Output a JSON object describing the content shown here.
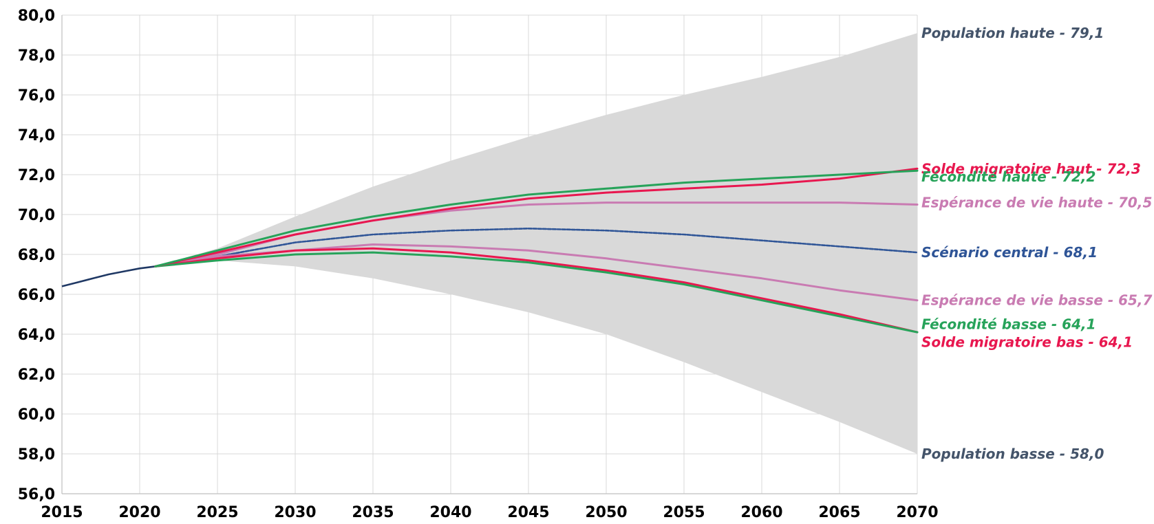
{
  "chart_data": {
    "type": "line",
    "title": "",
    "xlabel": "",
    "ylabel": "",
    "xlim": [
      2015,
      2070
    ],
    "ylim": [
      56,
      80
    ],
    "x_ticks": [
      2015,
      2020,
      2025,
      2030,
      2035,
      2040,
      2045,
      2050,
      2055,
      2060,
      2065,
      2070
    ],
    "x_tick_labels": [
      "2015",
      "2020",
      "2025",
      "2030",
      "2035",
      "2040",
      "2045",
      "2050",
      "2055",
      "2060",
      "2065",
      "2070"
    ],
    "y_ticks": [
      56,
      58,
      60,
      62,
      64,
      66,
      68,
      70,
      72,
      74,
      76,
      78,
      80
    ],
    "y_tick_labels": [
      "56,0",
      "58,0",
      "60,0",
      "62,0",
      "64,0",
      "66,0",
      "68,0",
      "70,0",
      "72,0",
      "74,0",
      "76,0",
      "78,0",
      "80,0"
    ],
    "grid": true,
    "history": {
      "color": "#1f3864",
      "x": [
        2015,
        2016,
        2017,
        2018,
        2019,
        2020,
        2021
      ],
      "y": [
        66.4,
        66.6,
        66.8,
        67.0,
        67.15,
        67.3,
        67.4
      ]
    },
    "band": {
      "color": "#d9d9d9",
      "x": [
        2021,
        2025,
        2030,
        2035,
        2040,
        2045,
        2050,
        2055,
        2060,
        2065,
        2070
      ],
      "upper": [
        67.4,
        68.3,
        69.9,
        71.4,
        72.7,
        73.9,
        75.0,
        76.0,
        76.9,
        77.9,
        79.1
      ],
      "lower": [
        67.4,
        67.7,
        67.4,
        66.8,
        66.0,
        65.1,
        64.0,
        62.6,
        61.1,
        59.6,
        58.0
      ]
    },
    "series": [
      {
        "name": "Scénario central",
        "color": "#2f5597",
        "dashed": true,
        "x": [
          2021,
          2025,
          2030,
          2035,
          2040,
          2045,
          2050,
          2055,
          2060,
          2065,
          2070
        ],
        "y": [
          67.4,
          67.9,
          68.6,
          69.0,
          69.2,
          69.3,
          69.2,
          69.0,
          68.7,
          68.4,
          68.1
        ]
      },
      {
        "name": "Espérance de vie haute",
        "color": "#c97bb2",
        "x": [
          2021,
          2025,
          2030,
          2035,
          2040,
          2045,
          2050,
          2055,
          2060,
          2065,
          2070
        ],
        "y": [
          67.4,
          68.0,
          69.0,
          69.7,
          70.2,
          70.5,
          70.6,
          70.6,
          70.6,
          70.6,
          70.5
        ]
      },
      {
        "name": "Espérance de vie basse",
        "color": "#c97bb2",
        "x": [
          2021,
          2025,
          2030,
          2035,
          2040,
          2045,
          2050,
          2055,
          2060,
          2065,
          2070
        ],
        "y": [
          67.4,
          67.9,
          68.2,
          68.5,
          68.4,
          68.2,
          67.8,
          67.3,
          66.8,
          66.2,
          65.7
        ]
      },
      {
        "name": "Solde migratoire bas",
        "color": "#e8174f",
        "x": [
          2021,
          2025,
          2030,
          2035,
          2040,
          2045,
          2050,
          2055,
          2060,
          2065,
          2070
        ],
        "y": [
          67.4,
          67.8,
          68.2,
          68.3,
          68.1,
          67.7,
          67.2,
          66.6,
          65.8,
          65.0,
          64.1
        ]
      },
      {
        "name": "Fécondité basse",
        "color": "#27a35a",
        "x": [
          2021,
          2025,
          2030,
          2035,
          2040,
          2045,
          2050,
          2055,
          2060,
          2065,
          2070
        ],
        "y": [
          67.4,
          67.7,
          68.0,
          68.1,
          67.9,
          67.6,
          67.1,
          66.5,
          65.7,
          64.9,
          64.1
        ]
      },
      {
        "name": "Solde migratoire haut",
        "color": "#e8174f",
        "x": [
          2021,
          2025,
          2030,
          2035,
          2040,
          2045,
          2050,
          2055,
          2060,
          2065,
          2070
        ],
        "y": [
          67.4,
          68.1,
          69.0,
          69.7,
          70.3,
          70.8,
          71.1,
          71.3,
          71.5,
          71.8,
          72.3
        ]
      },
      {
        "name": "Fécondité haute",
        "color": "#27a35a",
        "x": [
          2021,
          2025,
          2030,
          2035,
          2040,
          2045,
          2050,
          2055,
          2060,
          2065,
          2070
        ],
        "y": [
          67.4,
          68.2,
          69.2,
          69.9,
          70.5,
          71.0,
          71.3,
          71.6,
          71.8,
          72.0,
          72.2
        ]
      }
    ],
    "end_labels": [
      {
        "text": "Population haute - 79,1",
        "color": "#44546a",
        "y": 79.1
      },
      {
        "text": "Solde migratoire haut - 72,3",
        "color": "#e8174f",
        "y": 72.3
      },
      {
        "text": "Fécondité haute - 72,2",
        "color": "#27a35a",
        "y": 71.9
      },
      {
        "text": "Espérance de vie haute - 70,5",
        "color": "#c97bb2",
        "y": 70.6
      },
      {
        "text": "Scénario central - 68,1",
        "color": "#2f5597",
        "y": 68.1
      },
      {
        "text": "Espérance de vie basse - 65,7",
        "color": "#c97bb2",
        "y": 65.7
      },
      {
        "text": "Fécondité basse - 64,1",
        "color": "#27a35a",
        "y": 64.5
      },
      {
        "text": "Solde migratoire bas - 64,1",
        "color": "#e8174f",
        "y": 63.6
      },
      {
        "text": "Population basse - 58,0",
        "color": "#44546a",
        "y": 58.0
      }
    ]
  }
}
